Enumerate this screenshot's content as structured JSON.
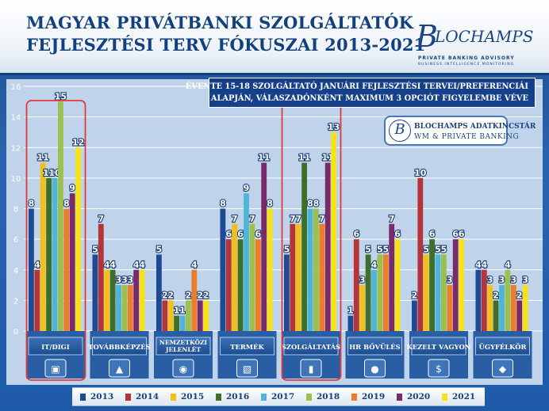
{
  "title_line1": "MAGYAR PRIVÁTBANKI SZOLGÁLTATÓK",
  "title_line2": "FEJLESZTÉSI TERV FÓKUSZAI 2013-2021",
  "logo": {
    "initial": "B",
    "name": "LOCHAMPS",
    "line1": "PRIVATE BANKING ADVISORY",
    "line2": "BUSINESS INTELLIGENCE MONITORING"
  },
  "subtitle_line1": "ÉVENTE 15-18 SZOLGÁLTATÓ JANUÁRI FEJLESZTÉSI TERVEI/PREFERENCIÁI",
  "subtitle_line2": "ALAPJÁN, VÁLASZADÓNKÉNT MAXIMUM 3 OPCIÓT FIGYELEMBE VÉVE",
  "source_badge": {
    "logo_letter": "B",
    "line1": "BLOCHAMPS ADATKINCSTÁR",
    "line2": "WM & PRIVATE BANKING"
  },
  "chart_data": {
    "type": "bar",
    "categories": [
      "IT/Digi",
      "Továbbképzés",
      "Nemzetközi jelenlét",
      "Termék",
      "Szolgáltatás",
      "HR bővülés",
      "Kezelt vagyon",
      "Ügyfélkör"
    ],
    "category_icons": [
      "phone-chart-icon",
      "graduation-cap-icon",
      "globe-icon",
      "picture-icon",
      "bar-chart-icon",
      "people-group-icon",
      "money-bag-icon",
      "users-icon"
    ],
    "highlighted_categories": [
      "IT/Digi",
      "Szolgáltatás"
    ],
    "ylim": [
      0,
      16
    ],
    "yticks": [
      0,
      2,
      4,
      6,
      8,
      10,
      12,
      14,
      16
    ],
    "grid": true,
    "legend_position": "bottom",
    "series": [
      {
        "name": "2013",
        "color": "#1e4a93",
        "values": [
          8,
          5,
          5,
          8,
          5,
          1,
          2,
          4
        ]
      },
      {
        "name": "2014",
        "color": "#b5343a",
        "values": [
          4,
          7,
          2,
          6,
          7,
          6,
          10,
          4
        ]
      },
      {
        "name": "2015",
        "color": "#f3c01b",
        "values": [
          11,
          4,
          2,
          7,
          7,
          3,
          5,
          3
        ]
      },
      {
        "name": "2016",
        "color": "#3f6d2a",
        "values": [
          10,
          4,
          1,
          6,
          11,
          5,
          6,
          2
        ]
      },
      {
        "name": "2017",
        "color": "#4fb5d8",
        "values": [
          10,
          3,
          1,
          9,
          8,
          4,
          5,
          3
        ]
      },
      {
        "name": "2018",
        "color": "#9bc04d",
        "values": [
          15,
          3,
          2,
          7,
          8,
          5,
          5,
          4
        ]
      },
      {
        "name": "2019",
        "color": "#ee7d2b",
        "values": [
          8,
          3,
          4,
          6,
          7,
          5,
          3,
          3
        ]
      },
      {
        "name": "2020",
        "color": "#7a2a6b",
        "values": [
          9,
          4,
          2,
          11,
          11,
          7,
          6,
          2
        ]
      },
      {
        "name": "2021",
        "color": "#f7e21a",
        "values": [
          12,
          4,
          2,
          8,
          13,
          6,
          6,
          3
        ]
      }
    ]
  }
}
